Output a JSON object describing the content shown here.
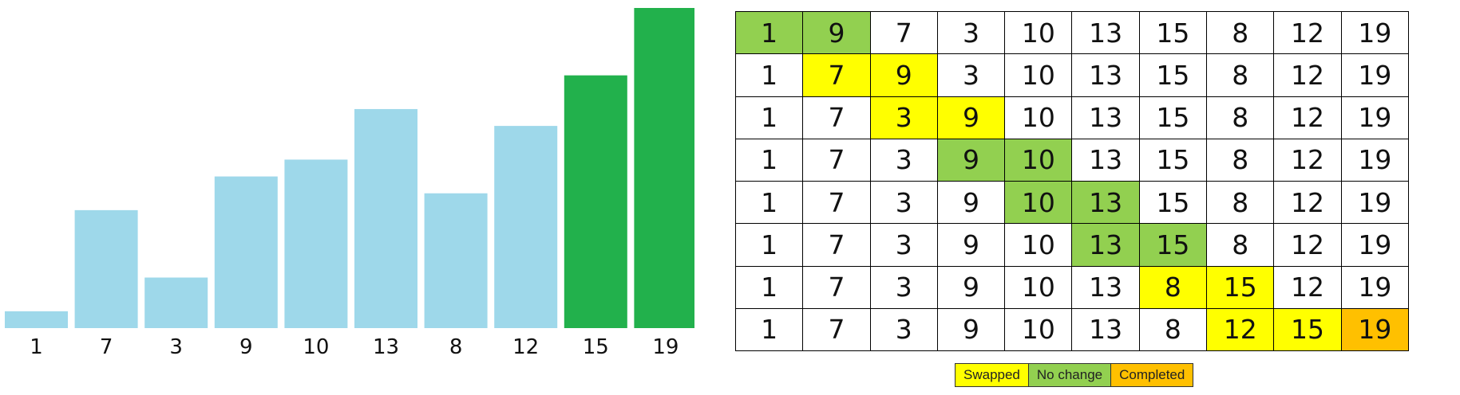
{
  "colors": {
    "bar_default": "#9ed8ea",
    "bar_completed": "#22b14c",
    "swapped": "#ffff00",
    "no_change": "#92d050",
    "completed": "#ffc000"
  },
  "chart_data": {
    "type": "bar",
    "categories": [
      "1",
      "7",
      "3",
      "9",
      "10",
      "13",
      "8",
      "12",
      "15",
      "19"
    ],
    "values": [
      1,
      7,
      3,
      9,
      10,
      13,
      8,
      12,
      15,
      19
    ],
    "completed_indices": [
      8,
      9
    ],
    "ylim": [
      0,
      19
    ]
  },
  "grid": {
    "rows": [
      {
        "values": [
          "1",
          "9",
          "7",
          "3",
          "10",
          "13",
          "15",
          "8",
          "12",
          "19"
        ],
        "states": [
          "no_change",
          "no_change",
          "",
          "",
          "",
          "",
          "",
          "",
          "",
          ""
        ]
      },
      {
        "values": [
          "1",
          "7",
          "9",
          "3",
          "10",
          "13",
          "15",
          "8",
          "12",
          "19"
        ],
        "states": [
          "",
          "swapped",
          "swapped",
          "",
          "",
          "",
          "",
          "",
          "",
          ""
        ]
      },
      {
        "values": [
          "1",
          "7",
          "3",
          "9",
          "10",
          "13",
          "15",
          "8",
          "12",
          "19"
        ],
        "states": [
          "",
          "",
          "swapped",
          "swapped",
          "",
          "",
          "",
          "",
          "",
          ""
        ]
      },
      {
        "values": [
          "1",
          "7",
          "3",
          "9",
          "10",
          "13",
          "15",
          "8",
          "12",
          "19"
        ],
        "states": [
          "",
          "",
          "",
          "no_change",
          "no_change",
          "",
          "",
          "",
          "",
          ""
        ]
      },
      {
        "values": [
          "1",
          "7",
          "3",
          "9",
          "10",
          "13",
          "15",
          "8",
          "12",
          "19"
        ],
        "states": [
          "",
          "",
          "",
          "",
          "no_change",
          "no_change",
          "",
          "",
          "",
          ""
        ]
      },
      {
        "values": [
          "1",
          "7",
          "3",
          "9",
          "10",
          "13",
          "15",
          "8",
          "12",
          "19"
        ],
        "states": [
          "",
          "",
          "",
          "",
          "",
          "no_change",
          "no_change",
          "",
          "",
          ""
        ]
      },
      {
        "values": [
          "1",
          "7",
          "3",
          "9",
          "10",
          "13",
          "8",
          "15",
          "12",
          "19"
        ],
        "states": [
          "",
          "",
          "",
          "",
          "",
          "",
          "swapped",
          "swapped",
          "",
          ""
        ]
      },
      {
        "values": [
          "1",
          "7",
          "3",
          "9",
          "10",
          "13",
          "8",
          "12",
          "15",
          "19"
        ],
        "states": [
          "",
          "",
          "",
          "",
          "",
          "",
          "",
          "swapped",
          "swapped",
          "completed"
        ]
      }
    ]
  },
  "legend": [
    {
      "label": "Swapped",
      "state": "swapped"
    },
    {
      "label": "No change",
      "state": "no_change"
    },
    {
      "label": "Completed",
      "state": "completed"
    }
  ]
}
